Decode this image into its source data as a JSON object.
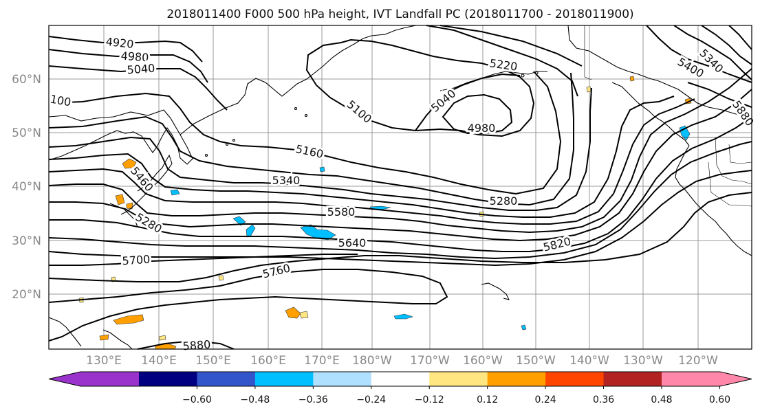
{
  "title": "2018011400 F000 500 hPa height, IVT Landfall PC (2018011700 - 2018011900)",
  "map": {
    "lat_ticks": [
      "20°N",
      "30°N",
      "40°N",
      "50°N",
      "60°N"
    ],
    "lon_ticks": [
      "130°E",
      "140°E",
      "150°E",
      "160°E",
      "170°E",
      "180°W",
      "170°W",
      "160°W",
      "150°W",
      "140°W",
      "130°W",
      "120°W"
    ],
    "contour_labels": [
      "4920",
      "4980",
      "5040",
      "100",
      "5220",
      "5100",
      "5040",
      "4980",
      "5400",
      "5340",
      "5280",
      "5160",
      "5340",
      "5460",
      "5280",
      "5580",
      "5640",
      "5820",
      "5700",
      "5760",
      "5880",
      "5880"
    ],
    "contour_color": "#000000",
    "coast_color": "#000000",
    "grid_color": "#999999"
  },
  "colorbar": {
    "ticks": [
      "−0.60",
      "−0.48",
      "−0.36",
      "−0.24",
      "−0.12",
      "0.12",
      "0.24",
      "0.36",
      "0.48",
      "0.60"
    ],
    "colors": [
      "#9933cc",
      "#000080",
      "#3355cc",
      "#00bfff",
      "#b0e0ff",
      "#ffffff",
      "#ffe680",
      "#ffa000",
      "#ff4500",
      "#b22222",
      "#ff88aa"
    ]
  }
}
